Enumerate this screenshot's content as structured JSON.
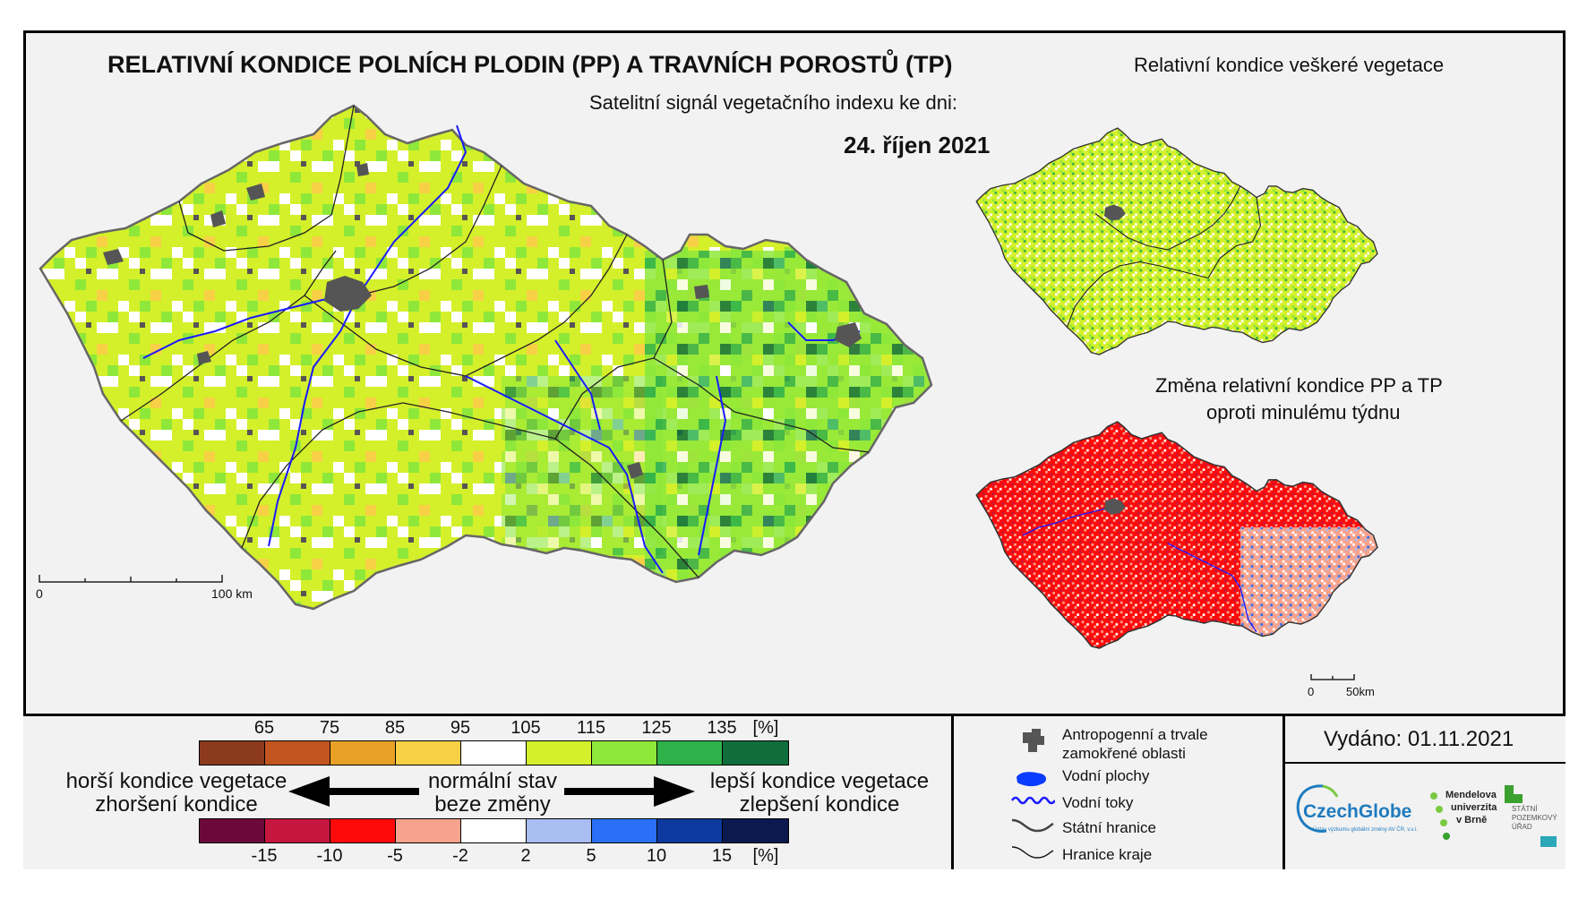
{
  "main_title": "RELATIVNÍ KONDICE POLNÍCH PLODIN (PP) A TRAVNÍCH POROSTŮ (TP)",
  "subtitle": "Satelitní signál vegetačního indexu ke dni:",
  "date": "24. říjen 2021",
  "inset_top_title": "Relativní kondice veškeré vegetace",
  "inset_bottom_title_1": "Změna relativní kondice PP a TP",
  "inset_bottom_title_2": "oproti minulému týdnu",
  "scale_main": {
    "zero": "0",
    "end": "100 km"
  },
  "scale_inset": {
    "zero": "0",
    "end": "50km"
  },
  "legend_condition": {
    "ticks": [
      "65",
      "75",
      "85",
      "95",
      "105",
      "115",
      "125",
      "135",
      "[%]"
    ],
    "colors": [
      "#8b3a1e",
      "#c2551f",
      "#e8a126",
      "#f7d046",
      "#ffffff",
      "#d4f02a",
      "#8ee83a",
      "#2fb14a",
      "#0f6e3c"
    ]
  },
  "legend_change": {
    "ticks": [
      "-15",
      "-10",
      "-5",
      "-2",
      "2",
      "5",
      "10",
      "15",
      "[%]"
    ],
    "colors": [
      "#6b0a3a",
      "#c4163f",
      "#ff0a0a",
      "#f7a28c",
      "#ffffff",
      "#a9bdf2",
      "#2a6ff7",
      "#0d3a9e",
      "#0a1a4f"
    ]
  },
  "worse_line1": "horší kondice vegetace",
  "worse_line2": "zhoršení kondice",
  "normal_line1": "normální stav",
  "normal_line2": "beze změny",
  "better_line1": "lepší kondice vegetace",
  "better_line2": "zlepšení kondice",
  "symbols": {
    "urban": "Antropogenní a trvale zamokřené oblasti",
    "water_bodies": "Vodní plochy",
    "rivers": "Vodní toky",
    "state_border": "Státní hranice",
    "region_border": "Hranice kraje"
  },
  "issued": "Vydáno: 01.11.2021",
  "logos": {
    "czechglobe": "CzechGlobe",
    "czechglobe_sub": "Ústav výzkumu globální změny AV ČR, v.v.i.",
    "mendel_1": "Mendelova",
    "mendel_2": "univerzita",
    "mendel_3": "v Brně",
    "spu_1": "STÁTNÍ",
    "spu_2": "POZEMKOVÝ",
    "spu_3": "ÚŘAD"
  },
  "colors": {
    "urban": "#555555",
    "river": "#1a1aff",
    "frame": "#000000"
  }
}
